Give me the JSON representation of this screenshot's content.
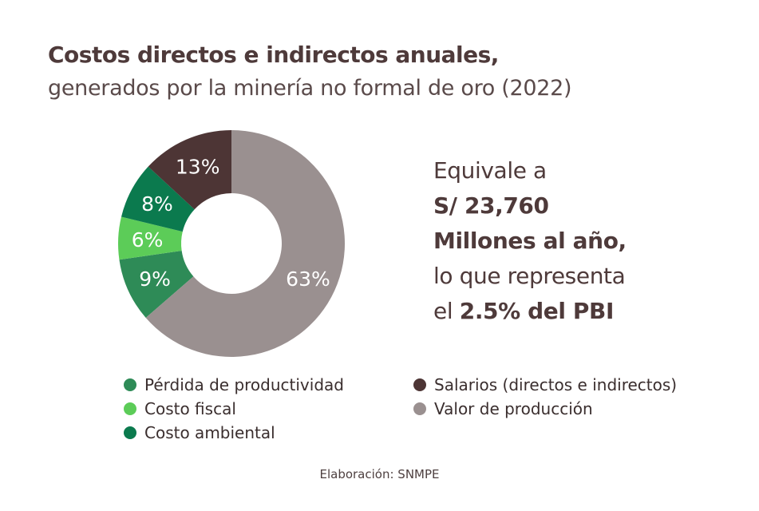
{
  "title": {
    "line1": "Costos directos e indirectos anuales,",
    "line2": "generados por la minería no formal de oro (2022)"
  },
  "chart_data": {
    "type": "pie",
    "variant": "donut",
    "categories": [
      "Pérdida de productividad",
      "Costo fiscal",
      "Costo ambiental",
      "Salarios (directos e indirectos)",
      "Valor de producción"
    ],
    "values": [
      9,
      6,
      8,
      13,
      63
    ],
    "labels": [
      "9%",
      "6%",
      "8%",
      "13%",
      "63%"
    ],
    "colors": [
      "#2e8b57",
      "#5ccc58",
      "#0b7a4e",
      "#4d3535",
      "#9a9090"
    ],
    "legend_position": "bottom"
  },
  "callout": {
    "line1": "Equivale a",
    "line2": "S/ 23,760",
    "line3": "Millones al año,",
    "line4": "lo que representa",
    "line5_prefix": "el",
    "line5_bold": "2.5% del PBI"
  },
  "source": "Elaboración: SNMPE"
}
